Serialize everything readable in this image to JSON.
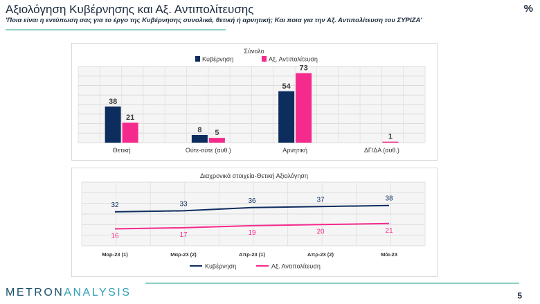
{
  "header": {
    "title": "Αξιολόγηση Κυβέρνησης και Αξ. Αντιπολίτευσης",
    "percent_sign": "%",
    "question": "'Ποια είναι η εντύπωση σας για το έργο της Κυβέρνησης συνολικά, θετική ή αρνητική; Και ποια για την Αξ. Αντιπολίτευση του ΣΥΡΙΖΑ'"
  },
  "footer": {
    "logo_part1": "METRON",
    "logo_part2": "ANALYSIS",
    "page_number": "5"
  },
  "colors": {
    "government": "#0d2d5e",
    "opposition": "#f52a8d"
  },
  "chart_data": [
    {
      "type": "bar",
      "title": "Σύνολο",
      "categories": [
        "Θετική",
        "Ούτε-ούτε (αυθ.)",
        "Αρνητική",
        "ΔΓ/ΔΑ (αυθ.)"
      ],
      "series": [
        {
          "name": "Κυβέρνηση",
          "values": [
            38,
            8,
            54,
            null
          ],
          "labels": [
            "38",
            "8",
            "54",
            ""
          ]
        },
        {
          "name": "Αξ. Αντιπολίτευση",
          "values": [
            21,
            5,
            73,
            1
          ],
          "labels": [
            "21",
            "5",
            "73",
            "1"
          ]
        }
      ],
      "ylim": [
        0,
        80
      ],
      "grid": true,
      "legend": "top"
    },
    {
      "type": "line",
      "title": "Διαχρονικά στοιχεία-Θετική Αξιολόγηση",
      "categories": [
        "Μαρ-23 (1)",
        "Μαρ-23 (2)",
        "Απρ-23 (1)",
        "Απρ-23 (2)",
        "Μάι-23"
      ],
      "series": [
        {
          "name": "Κυβέρνηση",
          "values": [
            32,
            33,
            36,
            37,
            38
          ],
          "labels": [
            "32",
            "33",
            "36",
            "37",
            "38"
          ]
        },
        {
          "name": "Αξ. Αντιπολίτευση",
          "values": [
            16,
            17,
            19,
            20,
            21
          ],
          "labels": [
            "16",
            "17",
            "19",
            "20",
            "21"
          ]
        }
      ],
      "ylim": [
        0,
        60
      ],
      "grid": true,
      "legend": "bottom"
    }
  ]
}
